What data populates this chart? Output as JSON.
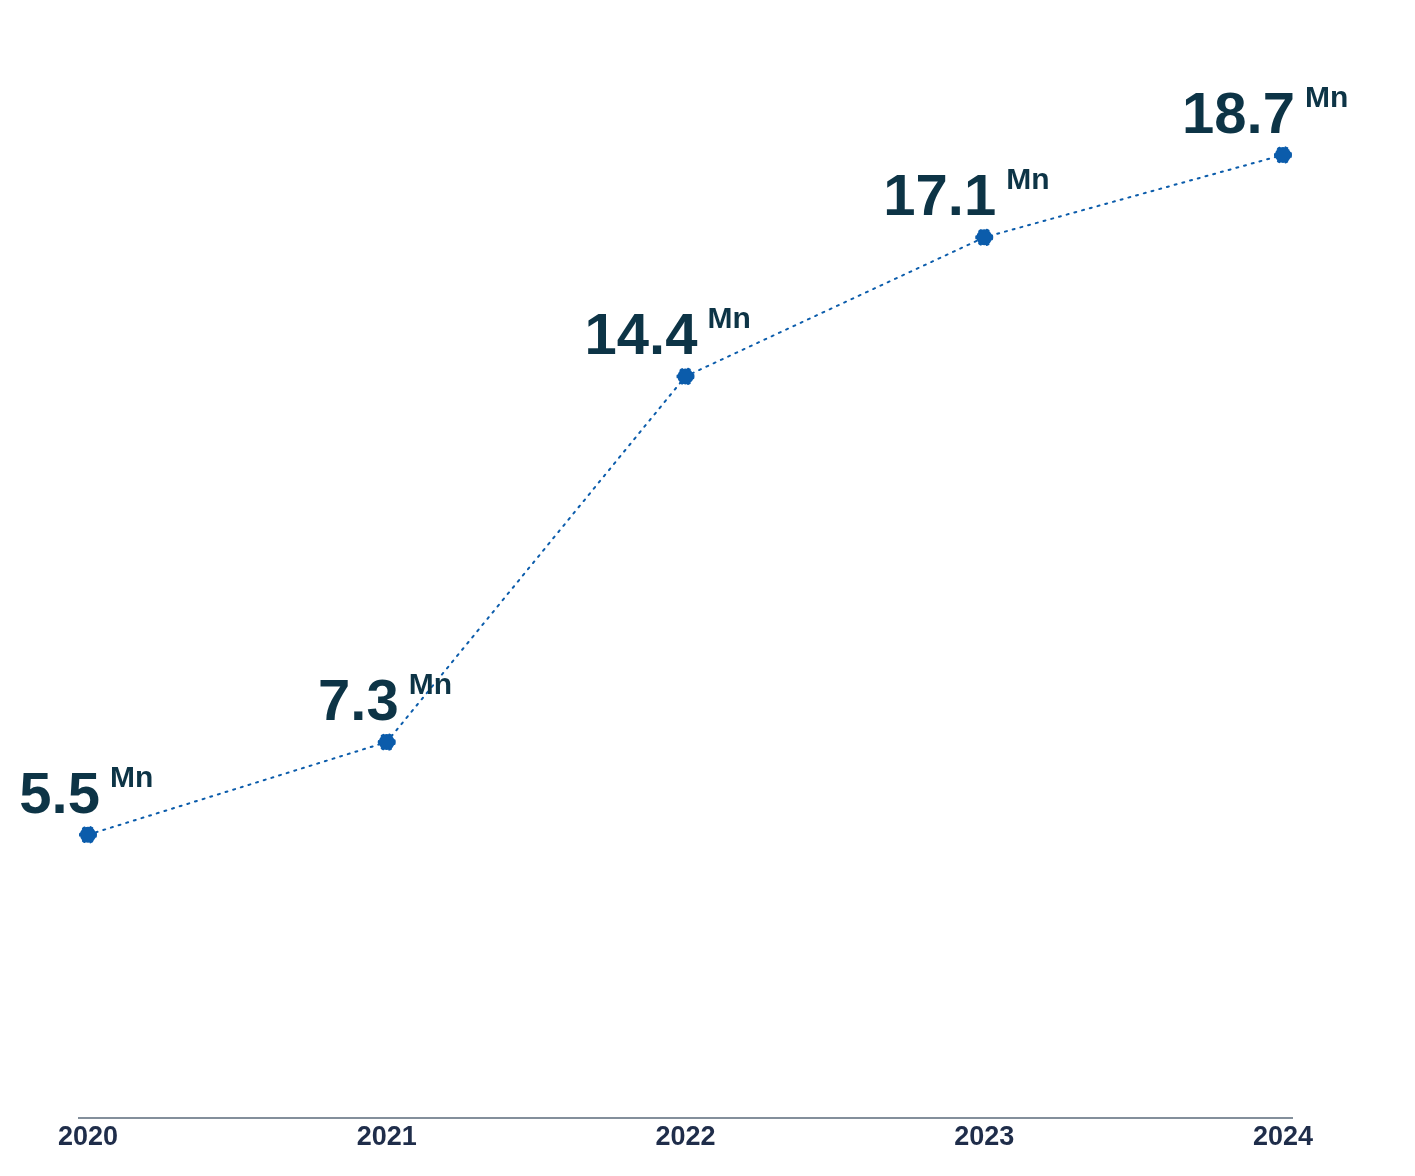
{
  "chart_data": {
    "type": "line",
    "categories": [
      "2020",
      "2021",
      "2022",
      "2023",
      "2024"
    ],
    "color": "#0b5cab",
    "values": [
      5.5,
      7.3,
      14.4,
      17.1,
      18.7
    ],
    "value_labels": [
      "5.5 $^{Mn}$",
      "7.3 $^{Mn}$",
      "14.4 $^{Mn}$",
      "17.1 $^{Mn}$",
      "18.7 $^{Mn}$"
    ],
    "tick_labels": "x",
    "marker": "circle",
    "line_style": "dotted",
    "grid": false,
    "legend": false
  }
}
